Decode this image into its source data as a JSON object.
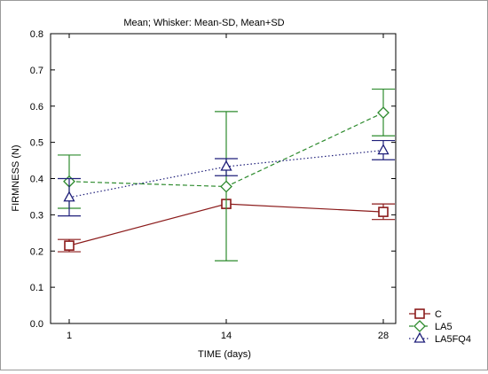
{
  "chart_data": {
    "type": "line",
    "title": "Mean;  Whisker: Mean-SD, Mean+SD",
    "xlabel": "TIME (days)",
    "ylabel": "FIRMNESS (N)",
    "categories": [
      "1",
      "14",
      "28"
    ],
    "ylim": [
      0.0,
      0.8
    ],
    "yticks": [
      "0.0",
      "0.1",
      "0.2",
      "0.3",
      "0.4",
      "0.5",
      "0.6",
      "0.7",
      "0.8"
    ],
    "grid": false,
    "legend_position": "bottom-right",
    "series": [
      {
        "name": "C",
        "color": "#8b1a1a",
        "marker": "square",
        "dash": "solid",
        "values": [
          0.215,
          0.33,
          0.308
        ],
        "lower": [
          0.198,
          0.33,
          0.287
        ],
        "upper": [
          0.232,
          0.33,
          0.33
        ]
      },
      {
        "name": "LA5",
        "color": "#2e8b2e",
        "marker": "diamond",
        "dash": "dashed",
        "values": [
          0.392,
          0.378,
          0.582
        ],
        "lower": [
          0.318,
          0.173,
          0.518
        ],
        "upper": [
          0.465,
          0.585,
          0.647
        ]
      },
      {
        "name": "LA5FQ4",
        "color": "#1f1f7a",
        "marker": "triangle",
        "dash": "dotted",
        "values": [
          0.348,
          0.433,
          0.478
        ],
        "lower": [
          0.297,
          0.408,
          0.452
        ],
        "upper": [
          0.4,
          0.455,
          0.505
        ]
      }
    ]
  }
}
